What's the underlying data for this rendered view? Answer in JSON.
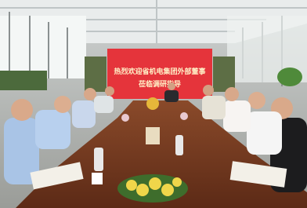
{
  "banner": {
    "line1": "热烈欢迎省机电集团外部董事",
    "line2": "莅临调研指导"
  }
}
